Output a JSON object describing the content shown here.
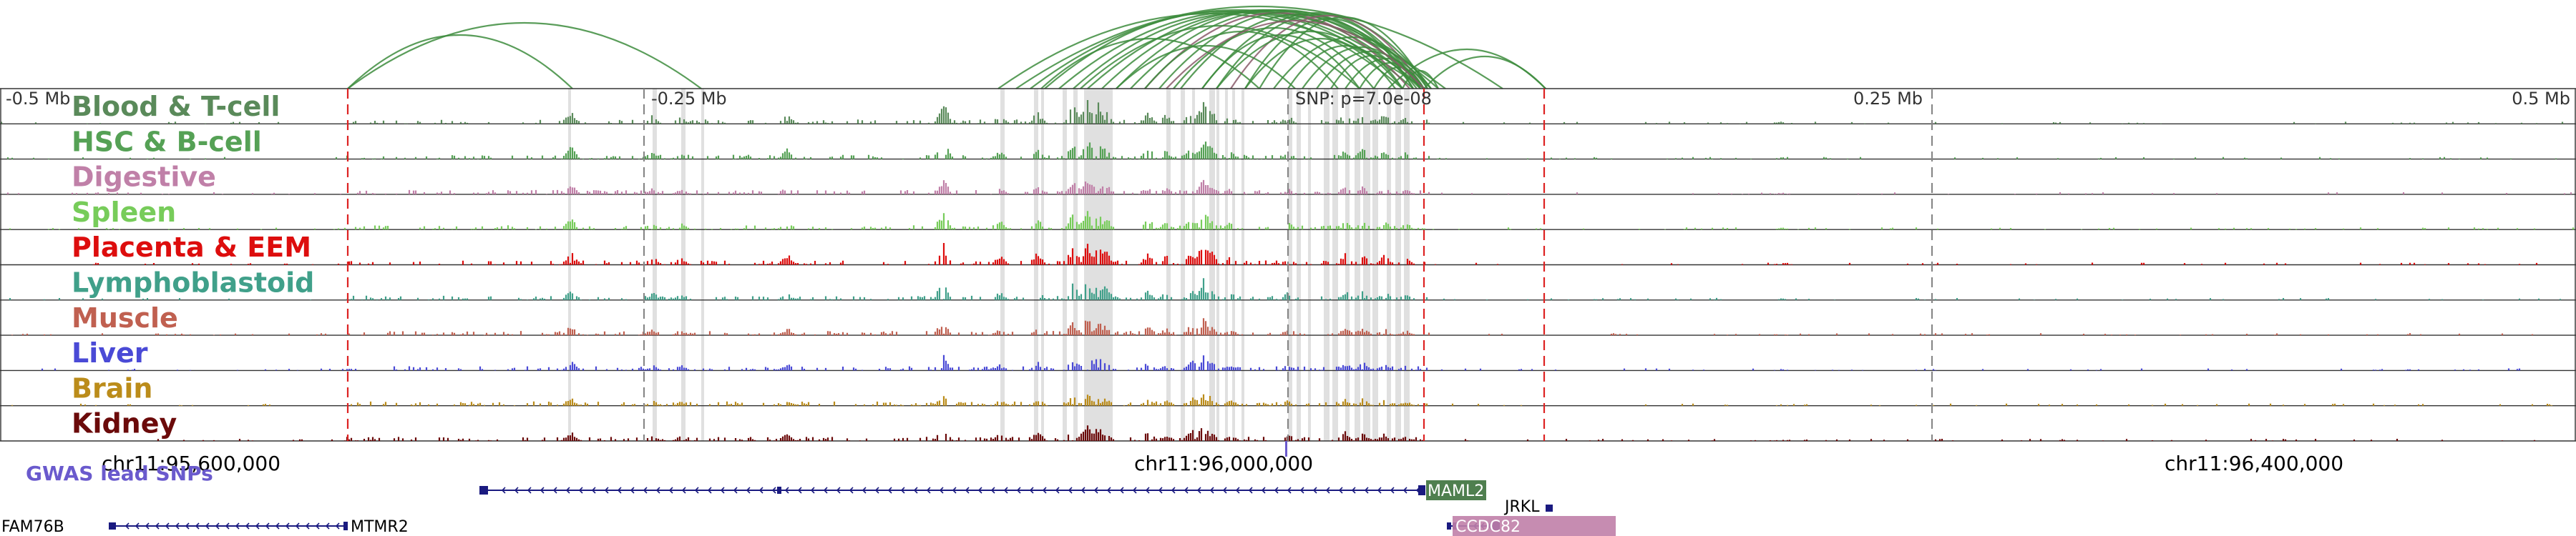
{
  "scale_labels": [
    "-0.5 Mb",
    "-0.25 Mb",
    "0.25 Mb",
    "0.5 Mb"
  ],
  "snp_label": "SNP: p=7.0e-08",
  "tracks": [
    {
      "name": "Blood & T-cell",
      "color": "#5a8a5a"
    },
    {
      "name": "HSC & B-cell",
      "color": "#55a155"
    },
    {
      "name": "Digestive",
      "color": "#c080a8"
    },
    {
      "name": "Spleen",
      "color": "#77cc5a"
    },
    {
      "name": "Placenta & EEM",
      "color": "#dd0d0d"
    },
    {
      "name": "Lymphoblastoid",
      "color": "#40a08a"
    },
    {
      "name": "Muscle",
      "color": "#c06050"
    },
    {
      "name": "Liver",
      "color": "#4a4ad6"
    },
    {
      "name": "Brain",
      "color": "#bb8c1a"
    },
    {
      "name": "Kidney",
      "color": "#6b0a0a"
    }
  ],
  "coordinates": [
    "chr11:95,600,000",
    "chr11:96,000,000",
    "chr11:96,400,000"
  ],
  "gwas_label": "GWAS lead SNPs",
  "genes": [
    {
      "name": "MAML2",
      "bg": "#4f7f4f",
      "fg": "#ffffff"
    },
    {
      "name": "JRKL",
      "bg": "",
      "fg": "#000000"
    },
    {
      "name": "CCDC82",
      "bg": "#c080a8",
      "fg": "#ffffff"
    },
    {
      "name": "FAM76B",
      "bg": "",
      "fg": "#000000"
    },
    {
      "name": "MTMR2",
      "bg": "",
      "fg": "#000000"
    }
  ],
  "colors": {
    "arc": "#3d8c3d",
    "arc_alt": "#8a5a6a",
    "dashed_red": "#dd2222",
    "dashed_gray": "#888888",
    "highlight": "#d8d8d8",
    "gene_strand": "#1a1a80",
    "gwas": "#6a5acd"
  }
}
